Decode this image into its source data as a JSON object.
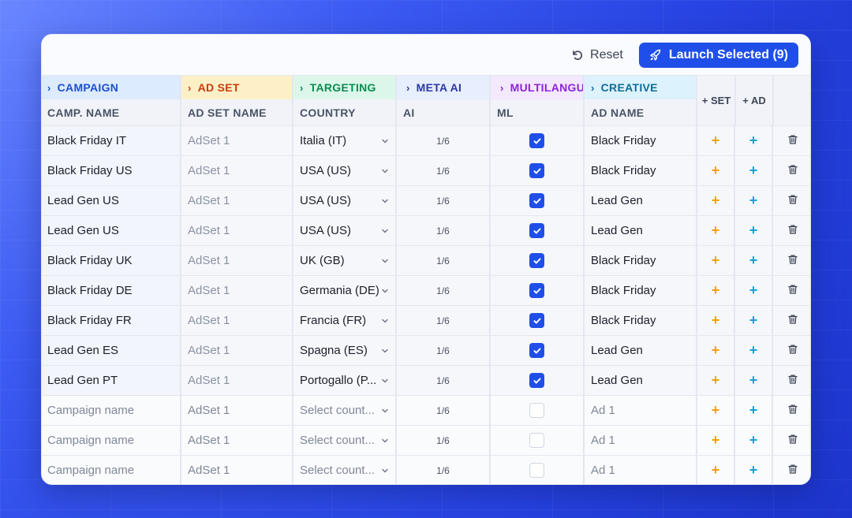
{
  "toolbar": {
    "reset_label": "Reset",
    "launch_label": "Launch Selected (9)"
  },
  "groups": {
    "campaign": "CAMPAIGN",
    "adset": "AD SET",
    "targeting": "TARGETING",
    "meta_ai": "META AI",
    "multilang": "MULTILANGU",
    "creative": "CREATIVE"
  },
  "action_headers": {
    "set": "+ SET",
    "ad": "+ AD"
  },
  "columns": {
    "camp_name": "CAMP. NAME",
    "adset_name": "AD SET NAME",
    "country": "COUNTRY",
    "ai": "AI",
    "ml": "ML",
    "ad_name": "AD NAME"
  },
  "rows": [
    {
      "campaign": "Black Friday IT",
      "adset": "AdSet 1",
      "country": "Italia (IT)",
      "ai": "1/6",
      "ml": true,
      "ad_name": "Black Friday"
    },
    {
      "campaign": "Black Friday US",
      "adset": "AdSet 1",
      "country": "USA (US)",
      "ai": "1/6",
      "ml": true,
      "ad_name": "Black Friday"
    },
    {
      "campaign": "Lead Gen US",
      "adset": "AdSet 1",
      "country": "USA (US)",
      "ai": "1/6",
      "ml": true,
      "ad_name": "Lead Gen"
    },
    {
      "campaign": "Lead Gen US",
      "adset": "AdSet 1",
      "country": "USA (US)",
      "ai": "1/6",
      "ml": true,
      "ad_name": "Lead Gen"
    },
    {
      "campaign": "Black Friday UK",
      "adset": "AdSet 1",
      "country": "UK (GB)",
      "ai": "1/6",
      "ml": true,
      "ad_name": "Black Friday"
    },
    {
      "campaign": "Black Friday DE",
      "adset": "AdSet 1",
      "country": "Germania (DE)",
      "ai": "1/6",
      "ml": true,
      "ad_name": "Black Friday"
    },
    {
      "campaign": "Black Friday FR",
      "adset": "AdSet 1",
      "country": "Francia (FR)",
      "ai": "1/6",
      "ml": true,
      "ad_name": "Black Friday"
    },
    {
      "campaign": "Lead Gen ES",
      "adset": "AdSet 1",
      "country": "Spagna (ES)",
      "ai": "1/6",
      "ml": true,
      "ad_name": "Lead Gen"
    },
    {
      "campaign": "Lead Gen PT",
      "adset": "AdSet 1",
      "country": "Portogallo (P...",
      "ai": "1/6",
      "ml": true,
      "ad_name": "Lead Gen"
    }
  ],
  "placeholder_rows": [
    {
      "campaign": "Campaign name",
      "adset": "AdSet 1",
      "country": "Select count...",
      "ai": "1/6",
      "ml": false,
      "ad_name": "Ad 1"
    },
    {
      "campaign": "Campaign name",
      "adset": "AdSet 1",
      "country": "Select count...",
      "ai": "1/6",
      "ml": false,
      "ad_name": "Ad 1"
    },
    {
      "campaign": "Campaign name",
      "adset": "AdSet 1",
      "country": "Select count...",
      "ai": "1/6",
      "ml": false,
      "ad_name": "Ad 1"
    }
  ],
  "icons": {
    "reset": "reset-icon",
    "launch": "rocket-icon",
    "expand": "chevron-right-icon",
    "dropdown": "chevron-down-icon",
    "check": "check-icon",
    "add_set": "plus-icon",
    "add_ad": "plus-icon",
    "delete": "trash-icon"
  },
  "colors": {
    "primary": "#1f4fe8",
    "add_set": "#f2a000",
    "add_ad": "#16a2d8",
    "campaign": "#1c4fd0",
    "adset": "#cc3a0c",
    "targeting": "#0b8a52",
    "meta_ai": "#2a3aa0",
    "multilang": "#8b25d6",
    "creative": "#0d6d98"
  }
}
